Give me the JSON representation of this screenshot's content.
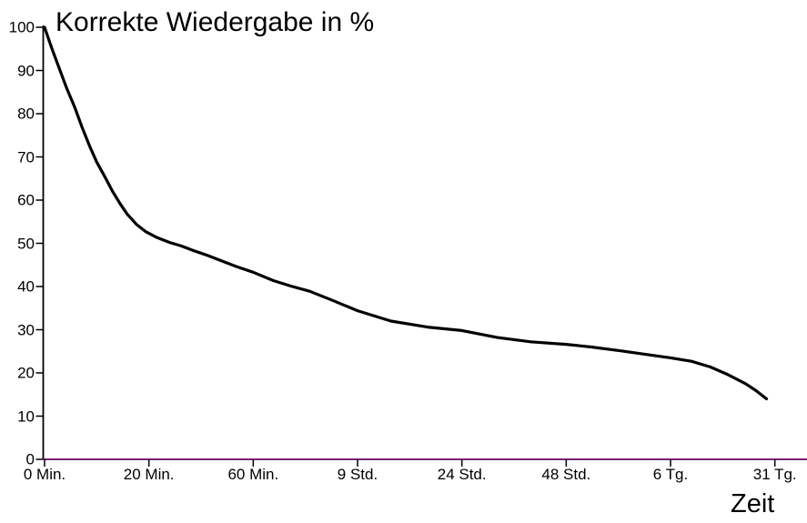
{
  "chart_data": {
    "type": "line",
    "title": "Korrekte Wiedergabe in %",
    "xlabel": "Zeit",
    "ylabel": "Korrekte Wiedergabe in %",
    "x_tick_labels": [
      "0 Min.",
      "20 Min.",
      "60 Min.",
      "9 Std.",
      "24 Std.",
      "48 Std.",
      "6 Tg.",
      "31 Tg."
    ],
    "y_tick_labels": [
      "100",
      "90",
      "80",
      "70",
      "60",
      "50",
      "40",
      "30",
      "20",
      "10",
      "0"
    ],
    "ylim": [
      0,
      100
    ],
    "grid": false,
    "legend": "none",
    "series": [
      {
        "categories": [
          "0 Min.",
          "20 Min.",
          "60 Min.",
          "9 Std.",
          "24 Std.",
          "48 Std.",
          "6 Tg.",
          "31 Tg."
        ],
        "values_at_ticks": [
          100,
          53,
          43,
          34,
          30,
          27,
          24,
          14
        ],
        "curve_samples": [
          [
            0,
            100
          ],
          [
            0.07,
            95.1
          ],
          [
            0.14,
            90.5
          ],
          [
            0.21,
            86
          ],
          [
            0.29,
            81.4
          ],
          [
            0.36,
            76.8
          ],
          [
            0.43,
            72.6
          ],
          [
            0.5,
            68.8
          ],
          [
            0.58,
            65.3
          ],
          [
            0.65,
            62.1
          ],
          [
            0.72,
            59.3
          ],
          [
            0.79,
            56.8
          ],
          [
            0.88,
            54.4
          ],
          [
            0.97,
            52.7
          ],
          [
            1.08,
            51.3
          ],
          [
            1.2,
            50.2
          ],
          [
            1.31,
            49.4
          ],
          [
            1.43,
            48.3
          ],
          [
            1.55,
            47.3
          ],
          [
            1.67,
            46.2
          ],
          [
            1.84,
            44.6
          ],
          [
            2,
            43.3
          ],
          [
            2.19,
            41.4
          ],
          [
            2.36,
            40.1
          ],
          [
            2.54,
            38.9
          ],
          [
            2.74,
            37
          ],
          [
            3,
            34.4
          ],
          [
            3.32,
            32
          ],
          [
            3.67,
            30.6
          ],
          [
            4,
            29.8
          ],
          [
            4.34,
            28.2
          ],
          [
            4.66,
            27.2
          ],
          [
            5,
            26.6
          ],
          [
            5.24,
            26
          ],
          [
            5.53,
            25.1
          ],
          [
            5.79,
            24.2
          ],
          [
            6,
            23.5
          ],
          [
            6.2,
            22.7
          ],
          [
            6.38,
            21.4
          ],
          [
            6.55,
            19.6
          ],
          [
            6.72,
            17.5
          ],
          [
            6.82,
            15.9
          ],
          [
            6.92,
            14
          ]
        ]
      }
    ],
    "colors": {
      "curve": "#000000",
      "x_axis": "#6A006A",
      "y_axis": "#000000",
      "tick": "#000000",
      "text": "#000000",
      "background": "#FFFFFF"
    }
  }
}
